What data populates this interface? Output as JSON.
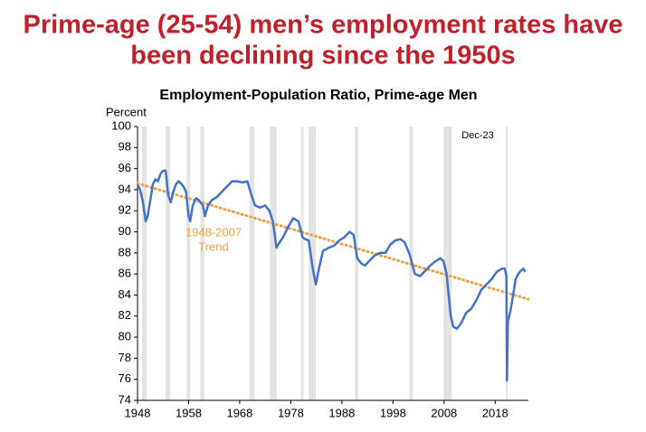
{
  "headline": [
    "Prime-age (25-54) men’s employment rates have",
    "been declining since the 1950s"
  ],
  "chart_data": {
    "type": "line",
    "title": "Employment-Population Ratio, Prime-age Men",
    "ylabel": "Percent",
    "xlim": [
      1948,
      2024.5
    ],
    "ylim": [
      74,
      100
    ],
    "xticks": [
      1948,
      1958,
      1968,
      1978,
      1988,
      1998,
      2008,
      2018
    ],
    "yticks": [
      74,
      76,
      78,
      80,
      82,
      84,
      86,
      88,
      90,
      92,
      94,
      96,
      98,
      100
    ],
    "recession_color": "#e3e3e3",
    "recessions": [
      [
        1948.9,
        1949.8
      ],
      [
        1953.5,
        1954.4
      ],
      [
        1957.6,
        1958.3
      ],
      [
        1960.3,
        1961.1
      ],
      [
        1969.9,
        1970.9
      ],
      [
        1973.9,
        1975.2
      ],
      [
        1980.0,
        1980.5
      ],
      [
        1981.5,
        1982.9
      ],
      [
        1990.5,
        1991.2
      ],
      [
        2001.2,
        2001.9
      ],
      [
        2007.9,
        2009.5
      ],
      [
        2020.1,
        2020.3
      ]
    ],
    "series": [
      {
        "color": "#4472c4",
        "x": [
          1948.0,
          1948.5,
          1949.0,
          1949.6,
          1950.0,
          1950.5,
          1951.0,
          1951.5,
          1952.0,
          1952.5,
          1953.0,
          1953.5,
          1954.0,
          1954.5,
          1955.0,
          1955.5,
          1956.0,
          1956.5,
          1957.0,
          1957.5,
          1958.0,
          1958.3,
          1958.8,
          1959.5,
          1960.0,
          1960.8,
          1961.2,
          1961.8,
          1962.5,
          1963.5,
          1964.5,
          1965.5,
          1966.5,
          1967.5,
          1968.5,
          1969.5,
          1970.3,
          1971.0,
          1972.0,
          1973.0,
          1973.8,
          1974.5,
          1975.2,
          1975.8,
          1976.5,
          1977.5,
          1978.5,
          1979.5,
          1980.3,
          1980.8,
          1981.5,
          1982.3,
          1982.9,
          1983.5,
          1984.3,
          1985.5,
          1986.5,
          1987.5,
          1988.5,
          1989.5,
          1990.3,
          1991.0,
          1991.8,
          1992.5,
          1993.5,
          1994.5,
          1995.5,
          1996.5,
          1997.5,
          1998.5,
          1999.5,
          2000.3,
          2001.3,
          2002.3,
          2003.3,
          2004.3,
          2005.3,
          2006.3,
          2007.3,
          2007.9,
          2008.5,
          2009.3,
          2009.8,
          2010.5,
          2011.3,
          2012.3,
          2013.3,
          2014.3,
          2015.3,
          2016.3,
          2017.3,
          2018.3,
          2019.3,
          2019.9,
          2020.2,
          2020.3,
          2020.5,
          2021.0,
          2021.5,
          2022.0,
          2022.5,
          2023.0,
          2023.5,
          2023.9
        ],
        "values": [
          94.5,
          94.0,
          93.0,
          91.0,
          91.5,
          93.0,
          94.5,
          95.0,
          94.8,
          95.5,
          95.8,
          95.8,
          93.5,
          92.8,
          93.8,
          94.5,
          94.8,
          94.6,
          94.3,
          93.8,
          91.5,
          91.0,
          92.5,
          93.2,
          93.0,
          92.5,
          91.5,
          92.5,
          93.0,
          93.3,
          93.8,
          94.3,
          94.8,
          94.8,
          94.7,
          94.8,
          93.5,
          92.5,
          92.3,
          92.5,
          92.0,
          91.0,
          88.5,
          89.0,
          89.5,
          90.5,
          91.3,
          91.0,
          89.5,
          89.3,
          89.2,
          86.5,
          85.0,
          86.5,
          88.2,
          88.5,
          88.7,
          89.2,
          89.5,
          90.0,
          89.7,
          87.5,
          87.0,
          86.8,
          87.3,
          87.8,
          88.0,
          88.0,
          88.8,
          89.2,
          89.3,
          89.0,
          87.8,
          86.0,
          85.8,
          86.3,
          86.8,
          87.2,
          87.5,
          87.2,
          86.0,
          82.0,
          81.0,
          80.8,
          81.3,
          82.3,
          82.7,
          83.5,
          84.5,
          85.0,
          85.5,
          86.2,
          86.5,
          86.5,
          85.8,
          75.9,
          81.5,
          82.5,
          84.0,
          85.5,
          86.0,
          86.3,
          86.5,
          86.2
        ]
      }
    ],
    "trend": {
      "color": "#f0a040",
      "x": [
        1948,
        2024.5
      ],
      "values": [
        94.6,
        83.6
      ]
    },
    "trend_label": [
      "1948-2007",
      "Trend"
    ],
    "date_label": "Dec-23"
  }
}
